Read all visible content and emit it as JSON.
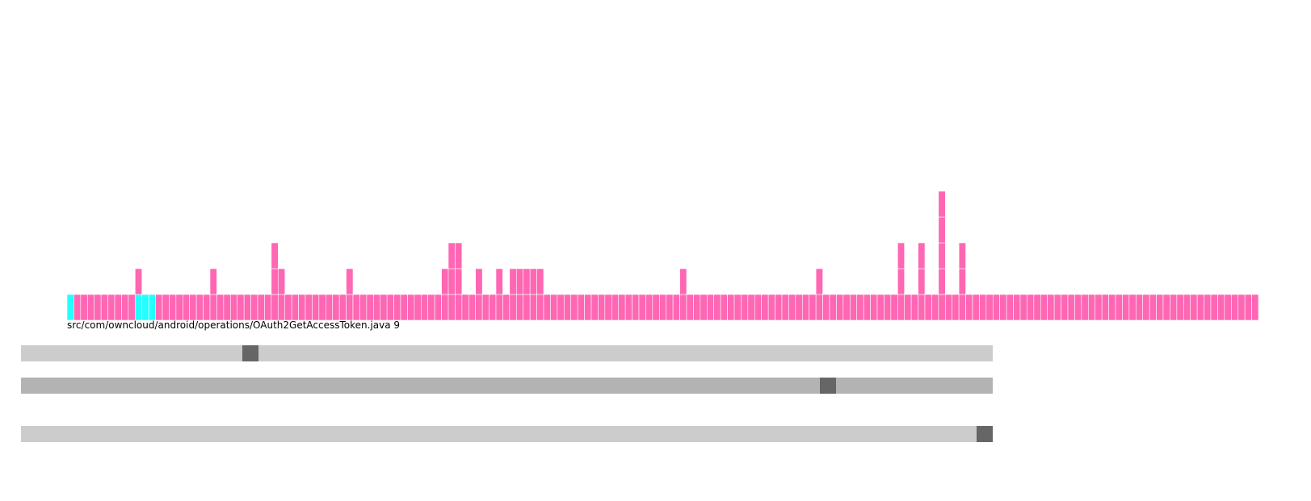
{
  "file_label": "src/com/owncloud/android/operations/OAuth2GetAccessToken.java 9",
  "colors": {
    "default": "#ff66b3",
    "highlight": "#22ffff",
    "track_light": "#cccccc",
    "track_dark": "#b3b3b3",
    "thumb": "#666666",
    "grid": "#ffffff"
  },
  "chart_data": {
    "type": "bar",
    "columns": 175,
    "heights": [
      1,
      1,
      1,
      1,
      1,
      1,
      1,
      1,
      1,
      1,
      2,
      1,
      1,
      1,
      1,
      1,
      1,
      1,
      1,
      1,
      1,
      2,
      1,
      1,
      1,
      1,
      1,
      1,
      1,
      1,
      3,
      2,
      1,
      1,
      1,
      1,
      1,
      1,
      1,
      1,
      1,
      2,
      1,
      1,
      1,
      1,
      1,
      1,
      1,
      1,
      1,
      1,
      1,
      1,
      1,
      2,
      3,
      3,
      1,
      1,
      2,
      1,
      1,
      2,
      1,
      2,
      2,
      2,
      2,
      2,
      1,
      1,
      1,
      1,
      1,
      1,
      1,
      1,
      1,
      1,
      1,
      1,
      1,
      1,
      1,
      1,
      1,
      1,
      1,
      1,
      2,
      1,
      1,
      1,
      1,
      1,
      1,
      1,
      1,
      1,
      1,
      1,
      1,
      1,
      1,
      1,
      1,
      1,
      1,
      1,
      2,
      1,
      1,
      1,
      1,
      1,
      1,
      1,
      1,
      1,
      1,
      1,
      3,
      1,
      1,
      3,
      1,
      1,
      5,
      1,
      1,
      3,
      1,
      1,
      1,
      1,
      1,
      1,
      1,
      1,
      1,
      1,
      1,
      1,
      1,
      1,
      1,
      1,
      1,
      1,
      1,
      1,
      1,
      1,
      1,
      1,
      1,
      1,
      1,
      1,
      1,
      1,
      1,
      1,
      1,
      1,
      1,
      1,
      1,
      1,
      1,
      1,
      1,
      1,
      1
    ],
    "highlighted_columns": [
      0,
      10,
      11,
      12
    ],
    "ylim": [
      0,
      5
    ]
  },
  "scrollbars": [
    {
      "value": 0.232,
      "variant": "light"
    },
    {
      "value": 0.836,
      "variant": "dark"
    },
    {
      "value": 1.0,
      "variant": "light"
    }
  ]
}
